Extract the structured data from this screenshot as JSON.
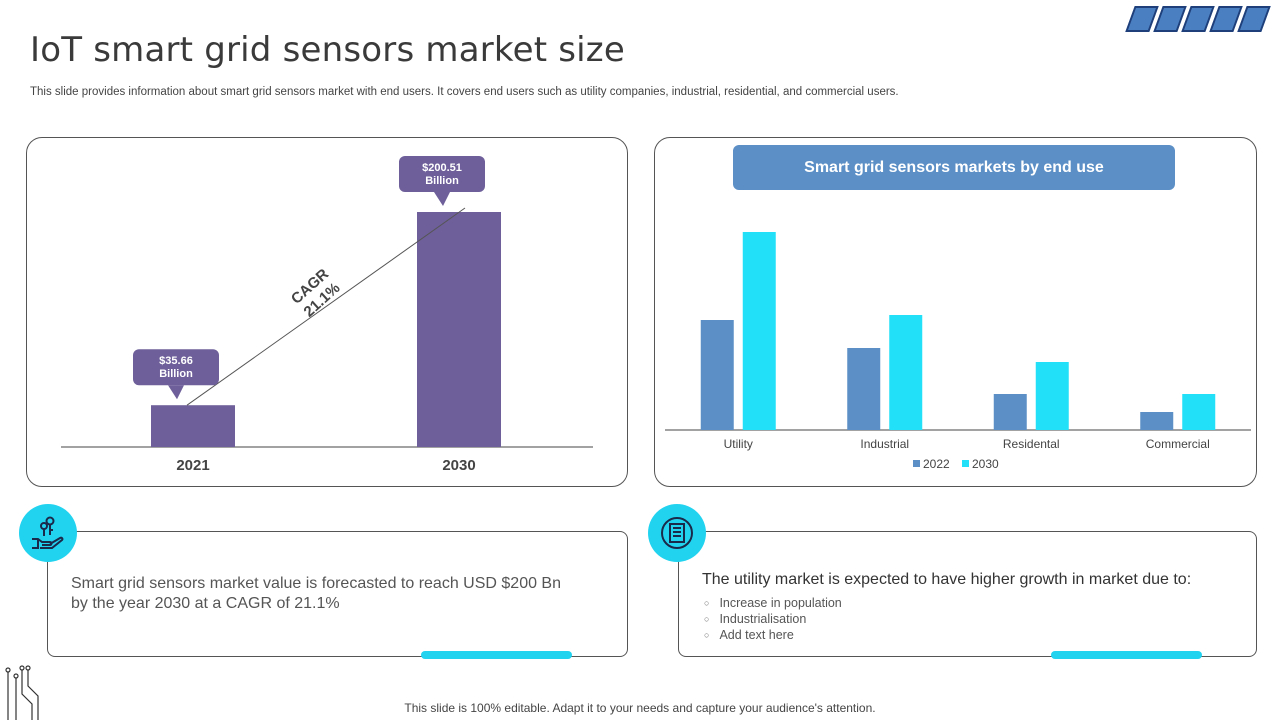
{
  "slide": {
    "title": "IoT smart grid sensors market size",
    "subtitle": "This slide provides information about smart grid sensors market with end users. It covers end users such as utility companies, industrial, residential, and commercial users.",
    "footer": "This slide is 100% editable. Adapt it to your needs and capture your audience's attention."
  },
  "colors": {
    "purple_bar": "#6e5f9a",
    "series_2022": "#5b8fc6",
    "series_2030": "#22e0f8",
    "accent": "#22d3f0"
  },
  "chart_data": [
    {
      "type": "bar",
      "categories": [
        "2021",
        "2030"
      ],
      "values": [
        35.66,
        200.51
      ],
      "value_labels": [
        "$35.66 Billion",
        "$200.51 Billion"
      ],
      "value_label_lines": [
        [
          "$35.66",
          "Billion"
        ],
        [
          "$200.51",
          "Billion"
        ]
      ],
      "annotation": {
        "line1": "CAGR",
        "line2": "21.1%"
      },
      "ylim": [
        0,
        200.51
      ],
      "grid": false
    },
    {
      "type": "bar",
      "title": "Smart grid sensors markets by end use",
      "categories": [
        "Utility",
        "Industrial",
        "Residental",
        "Commercial"
      ],
      "series": [
        {
          "name": "2022",
          "values": [
            110,
            82,
            36,
            18
          ]
        },
        {
          "name": "2030",
          "values": [
            198,
            115,
            68,
            36
          ]
        }
      ],
      "ylim": [
        0,
        200
      ],
      "legend": "bottom",
      "grid": false
    }
  ],
  "box_a": {
    "text": "Smart grid sensors market value is forecasted to reach USD $200 Bn by the year 2030 at a CAGR of 21.1%",
    "icon": "hand-with-keys-icon"
  },
  "box_b": {
    "heading": "The utility market is expected to have higher growth in market due to:",
    "bullets": [
      "Increase in population",
      "Industrialisation",
      "Add text here"
    ],
    "icon": "document-list-icon"
  }
}
